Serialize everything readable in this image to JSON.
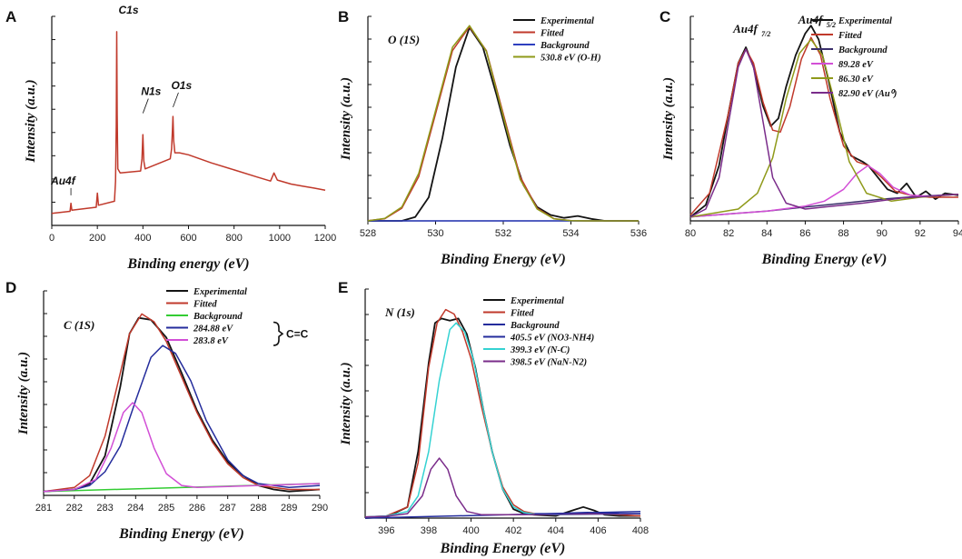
{
  "figure": {
    "description": "XPS spectra panels A-E"
  },
  "colors": {
    "experimental": "#141414",
    "fitted": "#c0392b",
    "background_blue": "#2e3fbf",
    "background_green": "#33cc33",
    "background_dark": "#3a2f6b",
    "olive": "#8f9a1a",
    "magenta": "#d24fd6",
    "purple": "#7a2c8a",
    "navy": "#242c9c",
    "cyan": "#34d2d2",
    "survey": "#c0392b"
  },
  "chart_data": [
    {
      "id": "A",
      "type": "line",
      "label": "A",
      "xlabel": "Binding energy (eV)",
      "ylabel": "Intensity (a.u.)",
      "xlim": [
        0,
        1200
      ],
      "ylim": [
        0,
        100
      ],
      "xticks": [
        0,
        200,
        400,
        600,
        800,
        1000,
        1200
      ],
      "annotations": [
        {
          "text": "C1s",
          "x": 285,
          "y": 94
        },
        {
          "text": "N1s",
          "x": 400,
          "y": 52
        },
        {
          "text": "O1s",
          "x": 532,
          "y": 55
        },
        {
          "text": "Au4f",
          "x": 84,
          "y": 14
        }
      ],
      "series": [
        {
          "name": "Survey",
          "color": "survey",
          "x": [
            0,
            80,
            84,
            88,
            195,
            200,
            205,
            275,
            280,
            283,
            285,
            287,
            290,
            300,
            390,
            396,
            400,
            404,
            410,
            520,
            526,
            530,
            532,
            535,
            540,
            560,
            600,
            700,
            800,
            900,
            960,
            975,
            990,
            1050,
            1100,
            1150,
            1200
          ],
          "y": [
            6,
            7,
            11,
            7.5,
            9,
            16,
            10,
            12,
            22,
            50,
            96,
            55,
            28,
            26,
            27,
            33,
            45,
            32,
            28,
            33,
            38,
            48,
            54,
            42,
            36,
            36,
            35,
            31,
            27.5,
            24,
            22,
            26,
            22.5,
            20.5,
            19.5,
            18.5,
            17.5
          ]
        }
      ]
    },
    {
      "id": "B",
      "type": "line",
      "label": "B",
      "title": "O (1S)",
      "xlabel": "Binding Energy (eV)",
      "ylabel": "Intensity (a.u.)",
      "xlim": [
        528,
        536
      ],
      "ylim": [
        0,
        100
      ],
      "xticks": [
        528,
        530,
        532,
        534,
        536
      ],
      "legend": [
        "Experimental",
        "Fitted",
        "Background",
        "530.8 eV (O-H)"
      ],
      "series": [
        {
          "name": "Experimental",
          "color": "experimental",
          "x": [
            528,
            529,
            529.4,
            529.8,
            530.2,
            530.6,
            531,
            531.4,
            531.8,
            532.2,
            532.6,
            533,
            533.4,
            533.8,
            534.2,
            534.6,
            535,
            536
          ],
          "y": [
            0,
            0,
            2,
            12,
            42,
            78,
            98,
            88,
            64,
            38,
            18,
            7,
            3,
            1.5,
            2.5,
            1,
            0,
            0
          ]
        },
        {
          "name": "Fitted",
          "color": "fitted",
          "x": [
            528,
            528.5,
            529,
            529.5,
            530,
            530.5,
            531,
            531.5,
            532,
            532.5,
            533,
            533.5,
            534,
            534.5,
            535,
            536
          ],
          "y": [
            0.1,
            1.1,
            6.4,
            22.4,
            54.3,
            86.3,
            98.5,
            86.3,
            54.3,
            22.4,
            6.4,
            1.1,
            0.1,
            0,
            0,
            0
          ]
        },
        {
          "name": "Background",
          "color": "background_blue",
          "x": [
            528,
            536
          ],
          "y": [
            0,
            0
          ]
        },
        {
          "name": "530.8 eV (O-H)",
          "color": "olive",
          "x": [
            528,
            528.5,
            529,
            529.5,
            530,
            530.5,
            531,
            531.5,
            532,
            532.5,
            533,
            533.5,
            534,
            534.5,
            535,
            536
          ],
          "y": [
            0,
            1.3,
            7,
            24,
            56,
            88,
            99,
            86,
            53,
            21,
            6,
            1,
            0.1,
            0,
            0,
            0
          ]
        }
      ]
    },
    {
      "id": "C",
      "type": "line",
      "label": "C",
      "xlabel": "Binding Energy (eV)",
      "ylabel": "Intensity (a.u.)",
      "xlim": [
        80,
        94
      ],
      "ylim": [
        0,
        100
      ],
      "xticks": [
        80,
        82,
        84,
        86,
        88,
        90,
        92,
        94
      ],
      "peak_labels": [
        {
          "text": "Au4f",
          "sub": "7/2",
          "x": 82.9,
          "y": 92
        },
        {
          "text": "Au4f",
          "sub": "5/2",
          "x": 86.3,
          "y": 99
        }
      ],
      "legend": [
        "Experimental",
        "Fitted",
        "Background",
        "89.28 eV",
        "86.30 eV",
        "82.90 eV (Au⁰)"
      ],
      "series": [
        {
          "name": "Experimental",
          "color": "experimental",
          "x": [
            80,
            80.8,
            81.5,
            82,
            82.5,
            82.9,
            83.3,
            83.8,
            84.2,
            84.6,
            85,
            85.5,
            86,
            86.3,
            86.7,
            87.2,
            87.8,
            88.4,
            89,
            89.3,
            89.8,
            90.3,
            90.8,
            91.3,
            91.8,
            92.3,
            92.8,
            93.3,
            94
          ],
          "y": [
            2,
            8,
            28,
            55,
            80,
            88,
            78,
            58,
            48,
            52,
            68,
            84,
            95,
            99,
            92,
            72,
            45,
            33,
            30,
            28,
            22,
            16,
            14,
            19,
            12,
            15,
            11,
            14,
            13
          ]
        },
        {
          "name": "Fitted",
          "color": "fitted",
          "x": [
            80,
            81,
            82,
            82.5,
            82.9,
            83.3,
            83.8,
            84.3,
            84.7,
            85.2,
            85.8,
            86.3,
            86.8,
            87.3,
            88,
            88.7,
            89.3,
            90,
            90.7,
            91.5,
            92.5,
            94
          ],
          "y": [
            3,
            14,
            55,
            80,
            87,
            80,
            60,
            46,
            45,
            58,
            82,
            93,
            84,
            62,
            38,
            30,
            28,
            22,
            15,
            13,
            12,
            12
          ]
        },
        {
          "name": "Background",
          "color": "background_dark",
          "x": [
            80,
            82,
            84,
            86,
            88,
            90,
            92,
            94
          ],
          "y": [
            2,
            3.5,
            5,
            7,
            9,
            11,
            12.5,
            13.5
          ]
        },
        {
          "name": "89.28 eV",
          "color": "magenta",
          "x": [
            80,
            82,
            84,
            86,
            87,
            88,
            88.7,
            89.28,
            89.9,
            90.6,
            91.5,
            92.5,
            94
          ],
          "y": [
            2,
            3.5,
            5,
            7.5,
            10,
            16,
            24,
            28,
            24,
            17,
            13,
            12.5,
            13.5
          ]
        },
        {
          "name": "86.30 eV",
          "color": "olive",
          "x": [
            80,
            82.5,
            83.5,
            84.3,
            85,
            85.7,
            86.3,
            86.9,
            87.6,
            88.3,
            89.2,
            90.5,
            92,
            94
          ],
          "y": [
            2,
            6,
            14,
            32,
            62,
            85,
            92,
            84,
            58,
            30,
            14,
            10,
            12,
            13.5
          ]
        },
        {
          "name": "82.90 eV (Au⁰)",
          "color": "purple",
          "x": [
            80,
            80.8,
            81.5,
            82,
            82.5,
            82.9,
            83.3,
            83.8,
            84.3,
            85,
            86,
            87,
            89,
            91,
            94
          ],
          "y": [
            2,
            6,
            22,
            50,
            78,
            87,
            78,
            50,
            22,
            9,
            6,
            7,
            9,
            11.5,
            13.5
          ]
        }
      ]
    },
    {
      "id": "D",
      "type": "line",
      "label": "D",
      "title": "C (1S)",
      "xlabel": "Binding Energy (eV)",
      "ylabel": "Intensity (a.u.)",
      "xlim": [
        281,
        290
      ],
      "ylim": [
        0,
        100
      ],
      "xticks": [
        281,
        282,
        283,
        284,
        285,
        286,
        287,
        288,
        289,
        290
      ],
      "legend": [
        "Experimental",
        "Fitted",
        "Background",
        "284.88 eV",
        "283.8  eV"
      ],
      "brace_label": "C=C",
      "series": [
        {
          "name": "Experimental",
          "color": "experimental",
          "x": [
            281,
            282,
            282.5,
            283,
            283.5,
            283.8,
            284.1,
            284.5,
            285,
            285.5,
            286,
            286.5,
            287,
            287.5,
            288,
            288.5,
            289,
            290
          ],
          "y": [
            2,
            3,
            6,
            20,
            55,
            82,
            90,
            89,
            80,
            62,
            43,
            28,
            17,
            10,
            5,
            3,
            2,
            3
          ]
        },
        {
          "name": "Fitted",
          "color": "fitted",
          "x": [
            281,
            282,
            282.5,
            283,
            283.5,
            283.8,
            284.2,
            284.6,
            285,
            285.5,
            286,
            286.5,
            287,
            287.5,
            288,
            289,
            290
          ],
          "y": [
            2,
            4,
            10,
            30,
            62,
            82,
            92,
            88,
            78,
            60,
            42,
            27,
            16,
            9,
            5,
            3,
            3
          ]
        },
        {
          "name": "Background",
          "color": "background_green",
          "x": [
            281,
            290
          ],
          "y": [
            2,
            6
          ]
        },
        {
          "name": "284.88 eV",
          "color": "navy",
          "x": [
            281,
            282,
            282.5,
            283,
            283.5,
            284,
            284.5,
            284.88,
            285.3,
            285.8,
            286.3,
            287,
            287.5,
            288,
            289,
            290
          ],
          "y": [
            2,
            3,
            5,
            12,
            25,
            48,
            70,
            76,
            72,
            58,
            38,
            18,
            10,
            6,
            4,
            5
          ]
        },
        {
          "name": "283.8  eV",
          "color": "magenta",
          "x": [
            281,
            282,
            282.7,
            283.2,
            283.6,
            283.9,
            284.2,
            284.6,
            285,
            285.5,
            286,
            287,
            290
          ],
          "y": [
            2,
            3,
            8,
            24,
            42,
            47,
            42,
            24,
            11,
            5,
            4,
            4.5,
            6
          ]
        }
      ]
    },
    {
      "id": "E",
      "type": "line",
      "label": "E",
      "title": "N (1s)",
      "xlabel": "Binding Energy (eV)",
      "ylabel": "Intensity (a.u.)",
      "xlim": [
        395,
        408
      ],
      "ylim": [
        0,
        100
      ],
      "xticks": [
        396,
        398,
        400,
        402,
        404,
        406,
        408
      ],
      "legend": [
        "Experimental",
        "Fitted",
        "Background",
        "405.5 eV (NO3-NH4)",
        "399.3 eV (N-C)",
        "398.5 eV (NaN-N2)"
      ],
      "series": [
        {
          "name": "Experimental",
          "color": "experimental",
          "x": [
            395,
            396,
            397,
            397.5,
            398,
            398.3,
            398.6,
            399,
            399.4,
            399.8,
            400.2,
            400.6,
            401,
            401.5,
            402,
            402.5,
            403,
            404,
            404.8,
            405.3,
            405.8,
            406.3,
            407,
            408
          ],
          "y": [
            0,
            0.5,
            5,
            30,
            70,
            88,
            90,
            89,
            90,
            83,
            68,
            48,
            30,
            13,
            4,
            2,
            1.5,
            1,
            3.5,
            5,
            3.5,
            1.5,
            1,
            1
          ]
        },
        {
          "name": "Fitted",
          "color": "fitted",
          "x": [
            395,
            396,
            397,
            397.5,
            398,
            398.4,
            398.8,
            399.2,
            399.6,
            400,
            400.5,
            401,
            401.5,
            402,
            402.5,
            403,
            404,
            405,
            406,
            407,
            408
          ],
          "y": [
            0.5,
            1,
            5,
            25,
            68,
            88,
            94,
            92,
            84,
            72,
            50,
            30,
            14,
            6,
            3,
            2,
            1.5,
            2,
            2,
            1.5,
            1
          ]
        },
        {
          "name": "Background",
          "color": "navy",
          "x": [
            395,
            408
          ],
          "y": [
            0,
            3
          ]
        },
        {
          "name": "399.3 eV (N-C)",
          "color": "cyan",
          "x": [
            395,
            396,
            397,
            397.5,
            398,
            398.5,
            399,
            399.3,
            399.7,
            400.1,
            400.6,
            401,
            401.5,
            402,
            402.5,
            403,
            404,
            408
          ],
          "y": [
            0.5,
            1,
            3,
            10,
            30,
            62,
            85,
            88,
            84,
            72,
            48,
            30,
            13,
            5,
            2.5,
            1.8,
            1.5,
            2
          ]
        },
        {
          "name": "398.5 eV (NaN-N2)",
          "color": "purple",
          "x": [
            395,
            396,
            397,
            397.7,
            398.1,
            398.5,
            398.9,
            399.3,
            399.8,
            400.5,
            402,
            408
          ],
          "y": [
            0.5,
            0.8,
            2,
            10,
            22,
            27,
            22,
            10,
            3,
            1.5,
            1.5,
            2
          ]
        },
        {
          "name": "405.5 eV (NO3-NH4)",
          "color": "navy",
          "x": [
            403,
            404,
            405,
            405.5,
            406,
            407,
            408
          ],
          "y": [
            2,
            2,
            2.4,
            2.6,
            2.4,
            2.1,
            2
          ]
        }
      ]
    }
  ]
}
